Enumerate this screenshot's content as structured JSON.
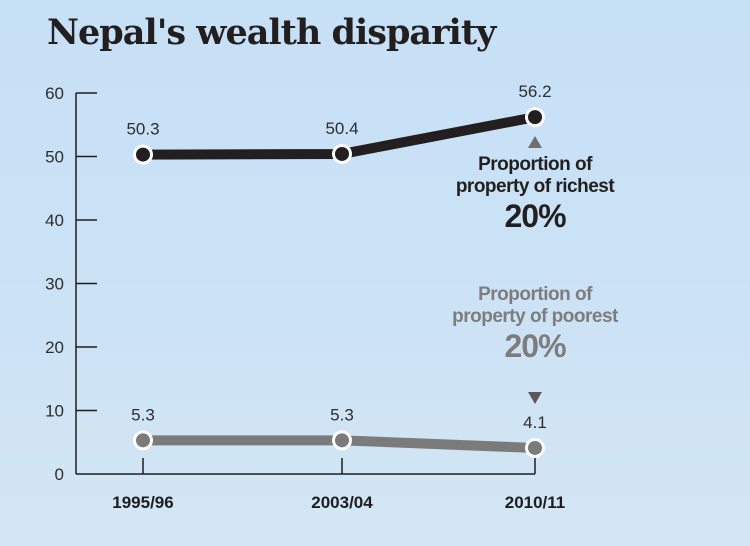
{
  "chart_data": {
    "type": "line",
    "title": "Nepal's wealth disparity",
    "xlabel": "",
    "ylabel": "",
    "categories": [
      "1995/96",
      "2003/04",
      "2010/11"
    ],
    "ylim": [
      0,
      60
    ],
    "yticks": [
      0,
      10,
      20,
      30,
      40,
      50,
      60
    ],
    "grid": false,
    "series": [
      {
        "name": "Proportion of property of richest 20%",
        "values": [
          50.3,
          50.4,
          56.2
        ],
        "labels": [
          "50.3",
          "50.4",
          "56.2"
        ],
        "color": "#231f20"
      },
      {
        "name": "Proportion of property of poorest 20%",
        "values": [
          5.3,
          5.3,
          4.1
        ],
        "labels": [
          "5.3",
          "5.3",
          "4.1"
        ],
        "color": "#7b7b7b"
      }
    ],
    "annotations": {
      "richest": {
        "line1": "Proportion of",
        "line2": "property of richest",
        "big": "20%",
        "color": "#231f20",
        "arrow": "up"
      },
      "poorest": {
        "line1": "Proportion of",
        "line2": "property of poorest",
        "big": "20%",
        "color": "#7d7d7d",
        "arrow": "down"
      }
    }
  }
}
